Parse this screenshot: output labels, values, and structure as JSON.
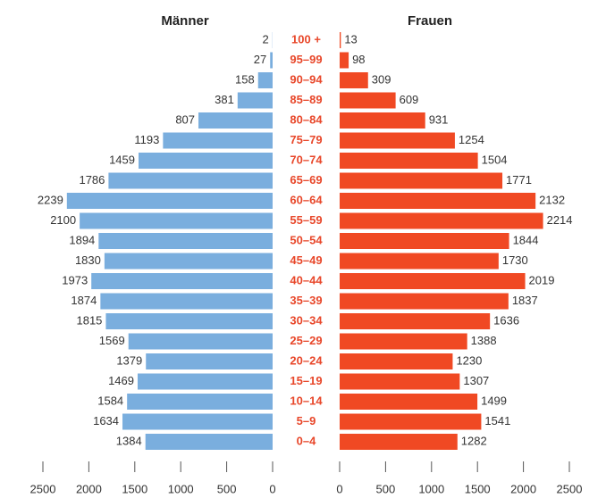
{
  "chart_data": {
    "type": "pyramid",
    "categories": [
      "100 +",
      "95–99",
      "90–94",
      "85–89",
      "80–84",
      "75–79",
      "70–74",
      "65–69",
      "60–64",
      "55–59",
      "50–54",
      "45–49",
      "40–44",
      "35–39",
      "30–34",
      "25–29",
      "20–24",
      "15–19",
      "10–14",
      "5–9",
      "0–4"
    ],
    "series": [
      {
        "name": "Männer",
        "color": "#7aaede",
        "values": [
          2,
          27,
          158,
          381,
          807,
          1193,
          1459,
          1786,
          2239,
          2100,
          1894,
          1830,
          1973,
          1874,
          1815,
          1569,
          1379,
          1469,
          1584,
          1634,
          1384
        ]
      },
      {
        "name": "Frauen",
        "color": "#f04923",
        "values": [
          13,
          98,
          309,
          609,
          931,
          1254,
          1504,
          1771,
          2132,
          2214,
          1844,
          1730,
          2019,
          1837,
          1636,
          1388,
          1230,
          1307,
          1499,
          1541,
          1282
        ]
      }
    ],
    "category_color": "#e8472a",
    "xlim": [
      0,
      2500
    ],
    "xticks": [
      0,
      500,
      1000,
      1500,
      2000,
      2500
    ]
  }
}
